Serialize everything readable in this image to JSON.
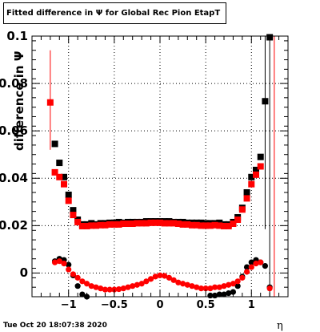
{
  "title": "Fitted difference in  Ψ  for Global Rec Pion EtapT",
  "xlabel": "η",
  "ylabel": "difference in Ψ",
  "timestamp": "Tue Oct 20 18:07:38 2020",
  "colors": {
    "series_black": "#000000",
    "series_red": "#ff0000",
    "grid": "#000000"
  },
  "chart_data": {
    "type": "scatter",
    "xlim": [
      -1.4,
      1.4
    ],
    "ylim": [
      -0.01,
      0.1
    ],
    "grid": true,
    "xticks": [
      {
        "value": -1,
        "label": "−1"
      },
      {
        "value": -0.5,
        "label": "−0.5"
      },
      {
        "value": 0,
        "label": "0"
      },
      {
        "value": 0.5,
        "label": "0.5"
      },
      {
        "value": 1,
        "label": "1"
      }
    ],
    "yticks": [
      {
        "value": 0,
        "label": "0"
      },
      {
        "value": 0.02,
        "label": "0.02"
      },
      {
        "value": 0.04,
        "label": "0.04"
      },
      {
        "value": 0.06,
        "label": "0.06"
      },
      {
        "value": 0.08,
        "label": "0.08"
      },
      {
        "value": 0.1,
        "label": "0.1"
      }
    ],
    "series": [
      {
        "marker": "square",
        "color": "#000000",
        "points": [
          {
            "x": -1.15,
            "y": 0.0545
          },
          {
            "x": -1.1,
            "y": 0.0465
          },
          {
            "x": -1.05,
            "y": 0.0405
          },
          {
            "x": -1.0,
            "y": 0.033
          },
          {
            "x": -0.95,
            "y": 0.0265
          },
          {
            "x": -0.9,
            "y": 0.0225
          },
          {
            "x": -0.85,
            "y": 0.0205
          },
          {
            "x": -0.8,
            "y": 0.0205
          },
          {
            "x": -0.75,
            "y": 0.021
          },
          {
            "x": -0.7,
            "y": 0.0205
          },
          {
            "x": -0.65,
            "y": 0.021
          },
          {
            "x": -0.6,
            "y": 0.021
          },
          {
            "x": -0.55,
            "y": 0.0212
          },
          {
            "x": -0.5,
            "y": 0.0212
          },
          {
            "x": -0.45,
            "y": 0.0215
          },
          {
            "x": -0.4,
            "y": 0.0212
          },
          {
            "x": -0.35,
            "y": 0.0215
          },
          {
            "x": -0.3,
            "y": 0.0215
          },
          {
            "x": -0.25,
            "y": 0.0215
          },
          {
            "x": -0.2,
            "y": 0.0215
          },
          {
            "x": -0.15,
            "y": 0.0218
          },
          {
            "x": -0.1,
            "y": 0.0218
          },
          {
            "x": -0.05,
            "y": 0.0218
          },
          {
            "x": 0.0,
            "y": 0.0218
          },
          {
            "x": 0.05,
            "y": 0.0218
          },
          {
            "x": 0.1,
            "y": 0.0218
          },
          {
            "x": 0.15,
            "y": 0.0215
          },
          {
            "x": 0.2,
            "y": 0.0215
          },
          {
            "x": 0.25,
            "y": 0.0215
          },
          {
            "x": 0.3,
            "y": 0.0212
          },
          {
            "x": 0.35,
            "y": 0.0212
          },
          {
            "x": 0.4,
            "y": 0.0212
          },
          {
            "x": 0.45,
            "y": 0.0212
          },
          {
            "x": 0.5,
            "y": 0.021
          },
          {
            "x": 0.55,
            "y": 0.021
          },
          {
            "x": 0.6,
            "y": 0.021
          },
          {
            "x": 0.65,
            "y": 0.0212
          },
          {
            "x": 0.7,
            "y": 0.0205
          },
          {
            "x": 0.75,
            "y": 0.0205
          },
          {
            "x": 0.8,
            "y": 0.0215
          },
          {
            "x": 0.85,
            "y": 0.0235
          },
          {
            "x": 0.9,
            "y": 0.0275
          },
          {
            "x": 0.95,
            "y": 0.034
          },
          {
            "x": 1.0,
            "y": 0.0405
          },
          {
            "x": 1.05,
            "y": 0.0435
          },
          {
            "x": 1.1,
            "y": 0.049
          },
          {
            "x": 1.15,
            "y": 0.0725
          },
          {
            "x": 1.2,
            "y": 0.0995
          }
        ]
      },
      {
        "marker": "square",
        "color": "#ff0000",
        "points": [
          {
            "x": -1.2,
            "y": 0.072
          },
          {
            "x": -1.15,
            "y": 0.0425
          },
          {
            "x": -1.1,
            "y": 0.0405
          },
          {
            "x": -1.05,
            "y": 0.0375
          },
          {
            "x": -1.0,
            "y": 0.0305
          },
          {
            "x": -0.95,
            "y": 0.0245
          },
          {
            "x": -0.9,
            "y": 0.0215
          },
          {
            "x": -0.85,
            "y": 0.0198
          },
          {
            "x": -0.8,
            "y": 0.0198
          },
          {
            "x": -0.75,
            "y": 0.02
          },
          {
            "x": -0.7,
            "y": 0.02
          },
          {
            "x": -0.65,
            "y": 0.0202
          },
          {
            "x": -0.6,
            "y": 0.0202
          },
          {
            "x": -0.55,
            "y": 0.0205
          },
          {
            "x": -0.5,
            "y": 0.0205
          },
          {
            "x": -0.45,
            "y": 0.0205
          },
          {
            "x": -0.4,
            "y": 0.0208
          },
          {
            "x": -0.35,
            "y": 0.0208
          },
          {
            "x": -0.3,
            "y": 0.0208
          },
          {
            "x": -0.25,
            "y": 0.021
          },
          {
            "x": -0.2,
            "y": 0.021
          },
          {
            "x": -0.15,
            "y": 0.021
          },
          {
            "x": -0.1,
            "y": 0.0212
          },
          {
            "x": -0.05,
            "y": 0.0212
          },
          {
            "x": 0.0,
            "y": 0.0212
          },
          {
            "x": 0.05,
            "y": 0.021
          },
          {
            "x": 0.1,
            "y": 0.021
          },
          {
            "x": 0.15,
            "y": 0.021
          },
          {
            "x": 0.2,
            "y": 0.0208
          },
          {
            "x": 0.25,
            "y": 0.0205
          },
          {
            "x": 0.3,
            "y": 0.0205
          },
          {
            "x": 0.35,
            "y": 0.0202
          },
          {
            "x": 0.4,
            "y": 0.0202
          },
          {
            "x": 0.45,
            "y": 0.02
          },
          {
            "x": 0.5,
            "y": 0.02
          },
          {
            "x": 0.55,
            "y": 0.02
          },
          {
            "x": 0.6,
            "y": 0.0202
          },
          {
            "x": 0.65,
            "y": 0.02
          },
          {
            "x": 0.7,
            "y": 0.0198
          },
          {
            "x": 0.75,
            "y": 0.0198
          },
          {
            "x": 0.8,
            "y": 0.0208
          },
          {
            "x": 0.85,
            "y": 0.0225
          },
          {
            "x": 0.9,
            "y": 0.0268
          },
          {
            "x": 0.95,
            "y": 0.0315
          },
          {
            "x": 1.0,
            "y": 0.0375
          },
          {
            "x": 1.05,
            "y": 0.0415
          },
          {
            "x": 1.1,
            "y": 0.045
          }
        ]
      },
      {
        "marker": "circle",
        "color": "#000000",
        "points": [
          {
            "x": -1.15,
            "y": 0.005
          },
          {
            "x": -1.1,
            "y": 0.006
          },
          {
            "x": -1.05,
            "y": 0.0055
          },
          {
            "x": -1.0,
            "y": 0.0035
          },
          {
            "x": -0.95,
            "y": -0.001
          },
          {
            "x": -0.9,
            "y": -0.0055
          },
          {
            "x": -0.85,
            "y": -0.009
          },
          {
            "x": -0.8,
            "y": -0.01
          },
          {
            "x": 0.55,
            "y": -0.0095
          },
          {
            "x": 0.6,
            "y": -0.0095
          },
          {
            "x": 0.65,
            "y": -0.009
          },
          {
            "x": 0.7,
            "y": -0.009
          },
          {
            "x": 0.75,
            "y": -0.0085
          },
          {
            "x": 0.8,
            "y": -0.008
          },
          {
            "x": 0.85,
            "y": -0.0055
          },
          {
            "x": 0.9,
            "y": -0.0015
          },
          {
            "x": 0.95,
            "y": 0.0025
          },
          {
            "x": 1.0,
            "y": 0.0045
          },
          {
            "x": 1.05,
            "y": 0.0055
          },
          {
            "x": 1.1,
            "y": 0.0045
          },
          {
            "x": 1.15,
            "y": 0.003
          },
          {
            "x": 1.2,
            "y": -0.006
          }
        ]
      },
      {
        "marker": "circle",
        "color": "#ff0000",
        "points": [
          {
            "x": -1.15,
            "y": 0.0045
          },
          {
            "x": -1.1,
            "y": 0.005
          },
          {
            "x": -1.05,
            "y": 0.004
          },
          {
            "x": -1.0,
            "y": 0.0015
          },
          {
            "x": -0.95,
            "y": -0.0005
          },
          {
            "x": -0.9,
            "y": -0.002
          },
          {
            "x": -0.85,
            "y": -0.0035
          },
          {
            "x": -0.8,
            "y": -0.0045
          },
          {
            "x": -0.75,
            "y": -0.0055
          },
          {
            "x": -0.7,
            "y": -0.006
          },
          {
            "x": -0.65,
            "y": -0.0065
          },
          {
            "x": -0.6,
            "y": -0.007
          },
          {
            "x": -0.55,
            "y": -0.007
          },
          {
            "x": -0.5,
            "y": -0.007
          },
          {
            "x": -0.45,
            "y": -0.0068
          },
          {
            "x": -0.4,
            "y": -0.0065
          },
          {
            "x": -0.35,
            "y": -0.006
          },
          {
            "x": -0.3,
            "y": -0.0055
          },
          {
            "x": -0.25,
            "y": -0.005
          },
          {
            "x": -0.2,
            "y": -0.0045
          },
          {
            "x": -0.15,
            "y": -0.0035
          },
          {
            "x": -0.1,
            "y": -0.0025
          },
          {
            "x": -0.05,
            "y": -0.0015
          },
          {
            "x": 0.0,
            "y": -0.001
          },
          {
            "x": 0.05,
            "y": -0.0012
          },
          {
            "x": 0.1,
            "y": -0.002
          },
          {
            "x": 0.15,
            "y": -0.003
          },
          {
            "x": 0.2,
            "y": -0.004
          },
          {
            "x": 0.25,
            "y": -0.0045
          },
          {
            "x": 0.3,
            "y": -0.005
          },
          {
            "x": 0.35,
            "y": -0.0055
          },
          {
            "x": 0.4,
            "y": -0.006
          },
          {
            "x": 0.45,
            "y": -0.0065
          },
          {
            "x": 0.5,
            "y": -0.0065
          },
          {
            "x": 0.55,
            "y": -0.0065
          },
          {
            "x": 0.6,
            "y": -0.006
          },
          {
            "x": 0.65,
            "y": -0.006
          },
          {
            "x": 0.7,
            "y": -0.0055
          },
          {
            "x": 0.75,
            "y": -0.005
          },
          {
            "x": 0.8,
            "y": -0.0045
          },
          {
            "x": 0.85,
            "y": -0.0035
          },
          {
            "x": 0.9,
            "y": -0.002
          },
          {
            "x": 0.95,
            "y": 0.0005
          },
          {
            "x": 1.0,
            "y": 0.0025
          },
          {
            "x": 1.05,
            "y": 0.004
          },
          {
            "x": 1.1,
            "y": 0.0045
          },
          {
            "x": 1.2,
            "y": -0.0065
          }
        ]
      }
    ],
    "error_bars": [
      {
        "x": -1.2,
        "ylow": 0.052,
        "yhigh": 0.094,
        "color": "#ff0000"
      },
      {
        "x": 1.15,
        "ylow": 0.0185,
        "yhigh": 0.1,
        "color": "#000000"
      },
      {
        "x": 1.2,
        "ylow": -0.01,
        "yhigh": 0.1,
        "color": "#000000"
      },
      {
        "x": 1.25,
        "ylow": -0.01,
        "yhigh": 0.1,
        "color": "#ff0000"
      }
    ]
  }
}
